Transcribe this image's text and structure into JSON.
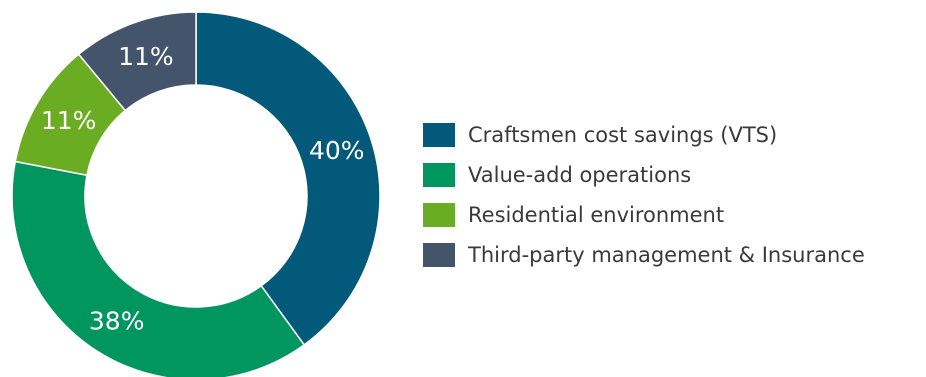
{
  "chart_data": {
    "type": "pie",
    "donut": true,
    "slices": [
      {
        "label": "Craftsmen cost savings (VTS)",
        "value": 40,
        "display": "40%",
        "color": "#03597a"
      },
      {
        "label": "Value-add operations",
        "value": 38,
        "display": "38%",
        "color": "#019660"
      },
      {
        "label": "Residential environment",
        "value": 11,
        "display": "11%",
        "color": "#6aad23"
      },
      {
        "label": "Third-party management & Insurance",
        "value": 11,
        "display": "11%",
        "color": "#44546a"
      }
    ],
    "legend_position": "right"
  },
  "legend": {
    "items": [
      {
        "label": "Craftsmen cost savings (VTS)",
        "color": "#03597a"
      },
      {
        "label": "Value-add operations",
        "color": "#019660"
      },
      {
        "label": "Residential environment",
        "color": "#6aad23"
      },
      {
        "label": "Third-party management & Insurance",
        "color": "#44546a"
      }
    ]
  }
}
